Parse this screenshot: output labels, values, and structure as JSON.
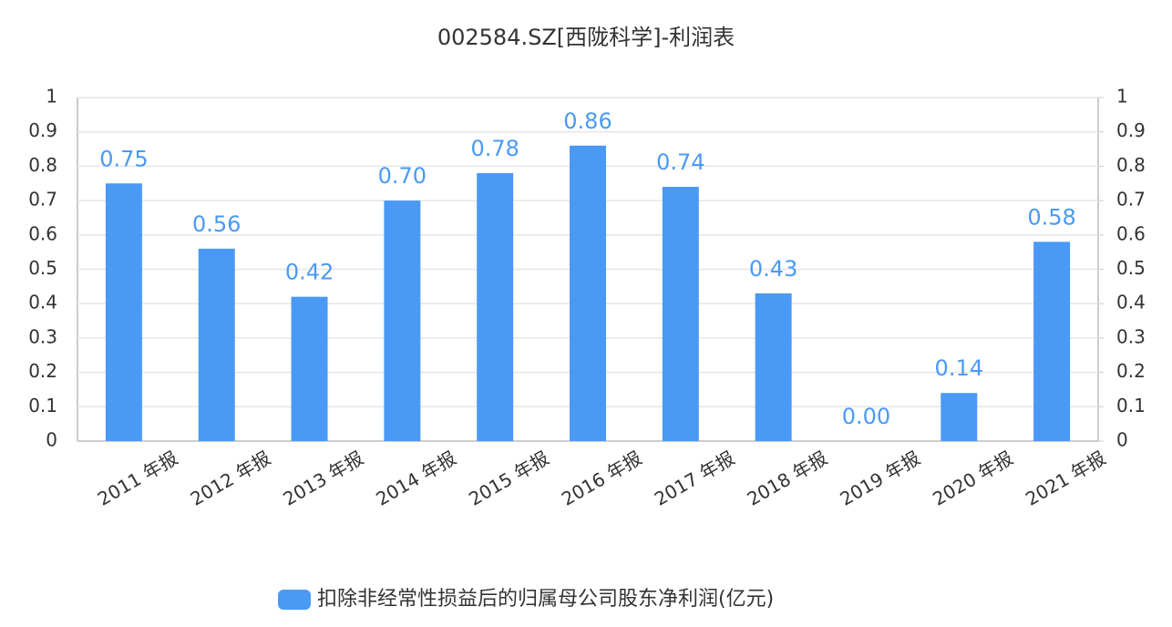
{
  "chart_data": {
    "type": "bar",
    "title": "002584.SZ[西陇科学]-利润表",
    "categories": [
      "2011 年报",
      "2012 年报",
      "2013 年报",
      "2014 年报",
      "2015 年报",
      "2016 年报",
      "2017 年报",
      "2018 年报",
      "2019 年报",
      "2020 年报",
      "2021 年报"
    ],
    "series": [
      {
        "name": "扣除非经常性损益后的归属母公司股东净利润(亿元)",
        "color": "#4a9af5",
        "values": [
          0.75,
          0.56,
          0.42,
          0.7,
          0.78,
          0.86,
          0.74,
          0.43,
          0,
          0.14,
          0.58
        ],
        "value_labels": [
          "0.75",
          "0.56",
          "0.42",
          "0.70",
          "0.78",
          "0.86",
          "0.74",
          "0.43",
          "0.00",
          "0.14",
          "0.58"
        ]
      }
    ],
    "ylim": [
      0,
      1
    ],
    "yticks": [
      0,
      0.1,
      0.2,
      0.3,
      0.4,
      0.5,
      0.6,
      0.7,
      0.8,
      0.9,
      1
    ],
    "y2lim": [
      0,
      1
    ],
    "y2ticks": [
      0,
      0.1,
      0.2,
      0.3,
      0.4,
      0.5,
      0.6,
      0.7,
      0.8,
      0.9,
      1
    ],
    "grid": true,
    "legend": "bottom"
  }
}
